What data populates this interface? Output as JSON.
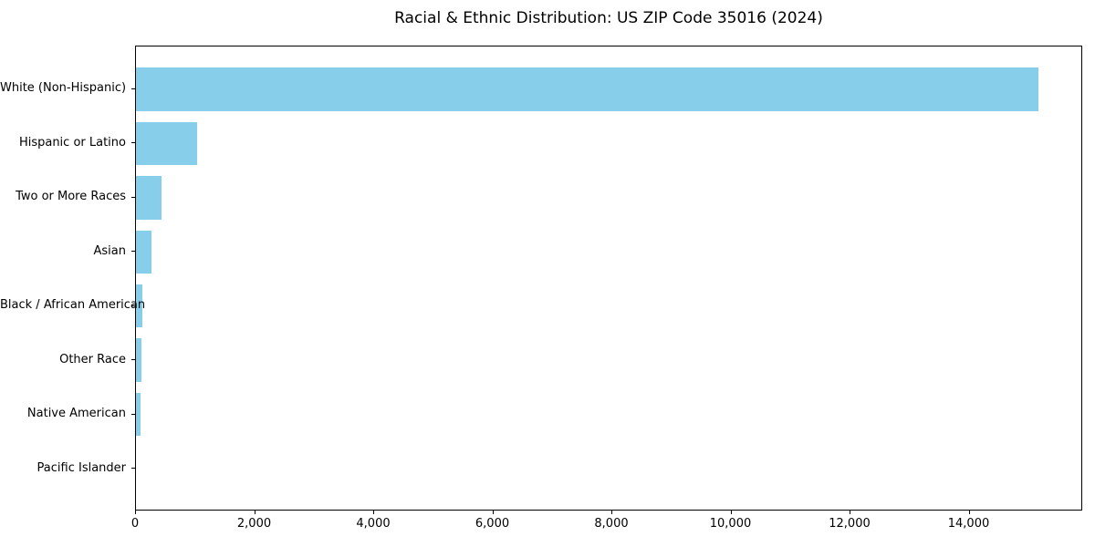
{
  "title": "Racial & Ethnic Distribution: US ZIP Code 35016 (2024)",
  "chart_data": {
    "type": "bar",
    "orientation": "horizontal",
    "title": "Racial & Ethnic Distribution: US ZIP Code 35016 (2024)",
    "categories": [
      "White (Non-Hispanic)",
      "Hispanic or Latino",
      "Two or More Races",
      "Asian",
      "Black / African American",
      "Other Race",
      "Native American",
      "Pacific Islander"
    ],
    "values": [
      15150,
      1020,
      425,
      255,
      100,
      85,
      80,
      0
    ],
    "bar_color": "#87CEEB",
    "xlabel": "",
    "ylabel": "",
    "xlim": [
      0,
      15908
    ],
    "x_ticks": [
      0,
      2000,
      4000,
      6000,
      8000,
      10000,
      12000,
      14000
    ],
    "x_tick_labels": [
      "0",
      "2,000",
      "4,000",
      "6,000",
      "8,000",
      "10,000",
      "12,000",
      "14,000"
    ],
    "grid": false,
    "legend_position": "none",
    "background_color": "#ffffff",
    "text_color": "#000000"
  }
}
